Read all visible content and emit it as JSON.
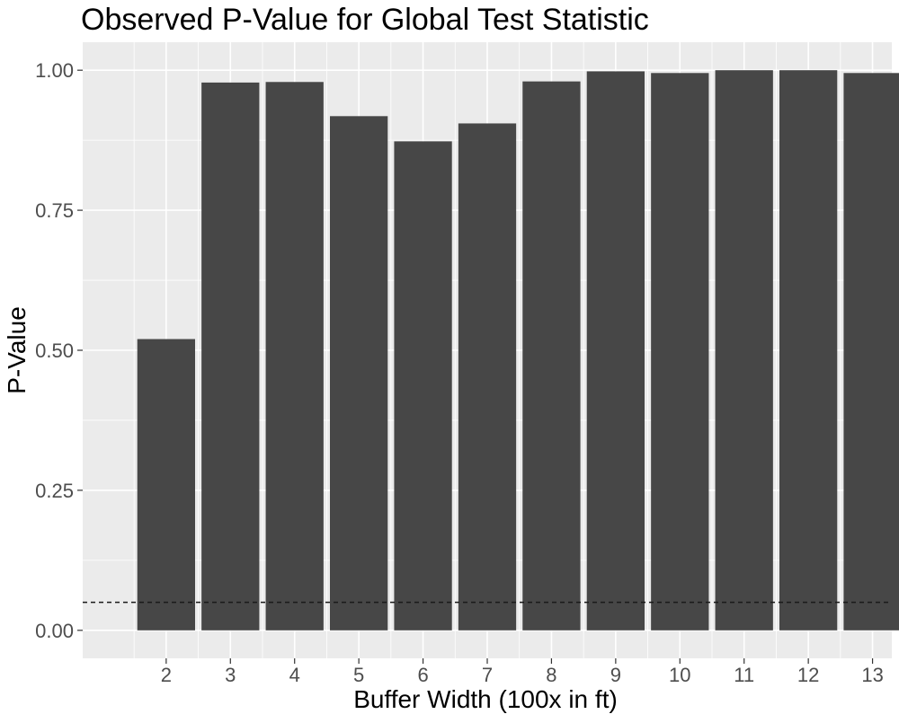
{
  "chart_data": {
    "type": "bar",
    "title": "Observed P-Value for Global Test Statistic",
    "xlabel": "Buffer Width (100x in ft)",
    "ylabel": "P-Value",
    "categories": [
      "2",
      "3",
      "4",
      "5",
      "6",
      "7",
      "8",
      "9",
      "10",
      "11",
      "12",
      "13"
    ],
    "values": [
      0.52,
      0.978,
      0.979,
      0.918,
      0.873,
      0.905,
      0.98,
      0.998,
      0.995,
      1.0,
      1.0,
      0.995
    ],
    "ylim": [
      -0.05,
      1.05
    ],
    "yticks": [
      0.0,
      0.25,
      0.5,
      0.75,
      1.0
    ],
    "ytick_labels": [
      "0.00",
      "0.25",
      "0.50",
      "0.75",
      "1.00"
    ],
    "reference_line": {
      "y": 0.05,
      "style": "dashed"
    },
    "grid": true,
    "legend": "none",
    "colors": {
      "panel_background": "#ebebeb",
      "grid_major": "#ffffff",
      "bar_fill": "#474747",
      "reference_line": "#1a1a1a",
      "tick_text": "#4d4d4d",
      "title_text": "#000000"
    }
  }
}
